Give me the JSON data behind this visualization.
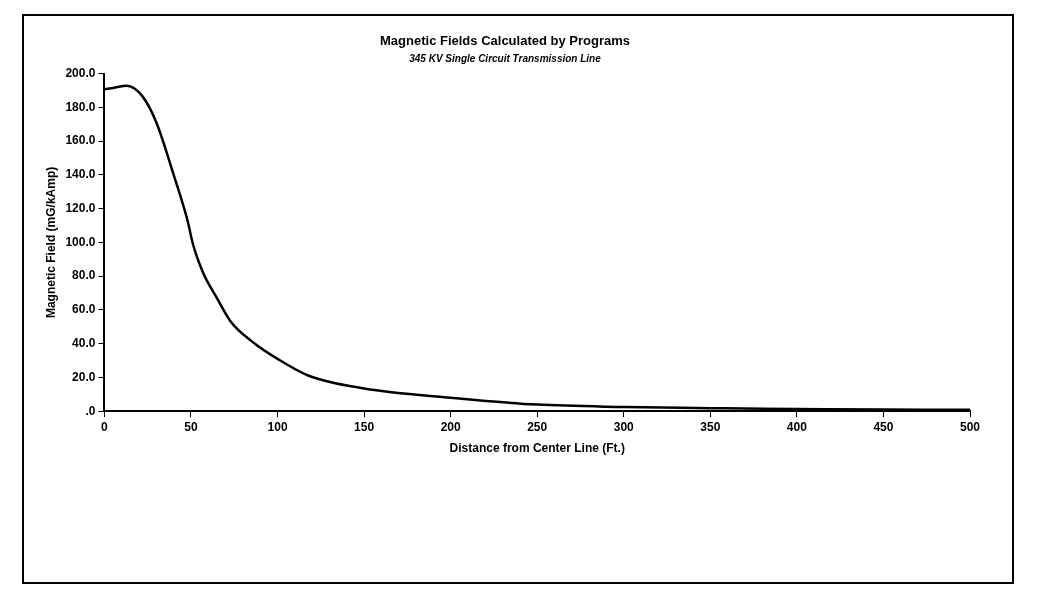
{
  "chart_data": {
    "type": "line",
    "title": "Magnetic Fields Calculated by Programs",
    "subtitle": "345 KV Single Circuit Transmission Line",
    "xlabel": "Distance from Center Line (Ft.)",
    "ylabel": "Magnetic Field (mG/kAmp)",
    "series": [
      {
        "color": "#000000",
        "x": [
          0,
          5,
          13,
          22,
          30,
          40,
          48,
          51,
          57,
          65,
          73,
          85,
          100,
          118,
          150,
          200,
          250,
          300,
          350,
          400,
          450,
          500
        ],
        "values": [
          190.7,
          191.5,
          192.8,
          186.5,
          171,
          140,
          113,
          99.5,
          82,
          67,
          53,
          41.5,
          31,
          21,
          13.5,
          8,
          3.9,
          2.5,
          1.8,
          1.3,
          1,
          0.8
        ]
      }
    ],
    "xlim": [
      0,
      500
    ],
    "xticks": [
      0,
      50,
      100,
      150,
      200,
      250,
      300,
      350,
      400,
      450,
      500
    ],
    "ylim": [
      0,
      200
    ],
    "yticks": [
      {
        "value": 0,
        "label": ".0"
      },
      {
        "value": 20,
        "label": "20.0"
      },
      {
        "value": 40,
        "label": "40.0"
      },
      {
        "value": 60,
        "label": "60.0"
      },
      {
        "value": 80,
        "label": "80.0"
      },
      {
        "value": 100,
        "label": "100.0"
      },
      {
        "value": 120,
        "label": "120.0"
      },
      {
        "value": 140,
        "label": "140.0"
      },
      {
        "value": 160,
        "label": "160.0"
      },
      {
        "value": 180,
        "label": "180.0"
      },
      {
        "value": 200,
        "label": "200.0"
      }
    ],
    "grid": false,
    "legend": false,
    "marker": "none",
    "line_style": "solid"
  }
}
